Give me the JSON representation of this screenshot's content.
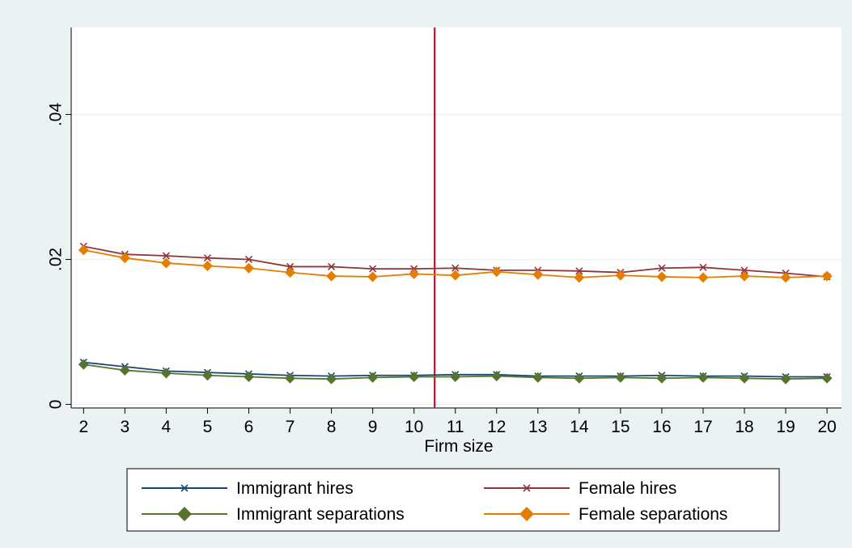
{
  "chart_data": {
    "type": "line",
    "xlabel": "Firm size",
    "ylabel": "",
    "title": "",
    "x": [
      2,
      3,
      4,
      5,
      6,
      7,
      8,
      9,
      10,
      11,
      12,
      13,
      14,
      15,
      16,
      17,
      18,
      19,
      20
    ],
    "x_tick_labels": [
      "2",
      "3",
      "4",
      "5",
      "6",
      "7",
      "8",
      "9",
      "10",
      "11",
      "12",
      "13",
      "14",
      "15",
      "16",
      "17",
      "18",
      "19",
      "20"
    ],
    "y_ticks": [
      0,
      0.02,
      0.04
    ],
    "y_tick_labels": [
      "0",
      ".02",
      ".04"
    ],
    "xlim": [
      1.7,
      20.35
    ],
    "ylim": [
      -0.0005,
      0.052
    ],
    "grid": true,
    "vertical_reference_line": {
      "x": 10.5,
      "color": "#b0172a"
    },
    "legend_position": "bottom",
    "series": [
      {
        "name": "Immigrant hires",
        "color": "#1a476f",
        "marker": "x",
        "values": [
          0.0058,
          0.0052,
          0.0046,
          0.0044,
          0.0042,
          0.004,
          0.0039,
          0.004,
          0.004,
          0.0041,
          0.0041,
          0.0039,
          0.0039,
          0.0039,
          0.004,
          0.0039,
          0.0039,
          0.0038,
          0.0038
        ]
      },
      {
        "name": "Female hires",
        "color": "#90353b",
        "marker": "x",
        "values": [
          0.0218,
          0.0207,
          0.0205,
          0.0202,
          0.02,
          0.019,
          0.019,
          0.0187,
          0.0187,
          0.0188,
          0.0185,
          0.0185,
          0.0184,
          0.0182,
          0.0188,
          0.0189,
          0.0185,
          0.0181,
          0.0176
        ]
      },
      {
        "name": "Immigrant separations",
        "color": "#55752f",
        "marker": "diamond",
        "values": [
          0.0055,
          0.0047,
          0.0043,
          0.004,
          0.0038,
          0.0036,
          0.0035,
          0.0037,
          0.0038,
          0.0038,
          0.0039,
          0.0037,
          0.0036,
          0.0037,
          0.0036,
          0.0037,
          0.0036,
          0.0035,
          0.0036
        ]
      },
      {
        "name": "Female separations",
        "color": "#e37e00",
        "marker": "diamond",
        "values": [
          0.0213,
          0.0202,
          0.0195,
          0.0191,
          0.0188,
          0.0182,
          0.0177,
          0.0176,
          0.018,
          0.0178,
          0.0183,
          0.0179,
          0.0175,
          0.0178,
          0.0176,
          0.0175,
          0.0177,
          0.0175,
          0.0177
        ]
      }
    ]
  }
}
